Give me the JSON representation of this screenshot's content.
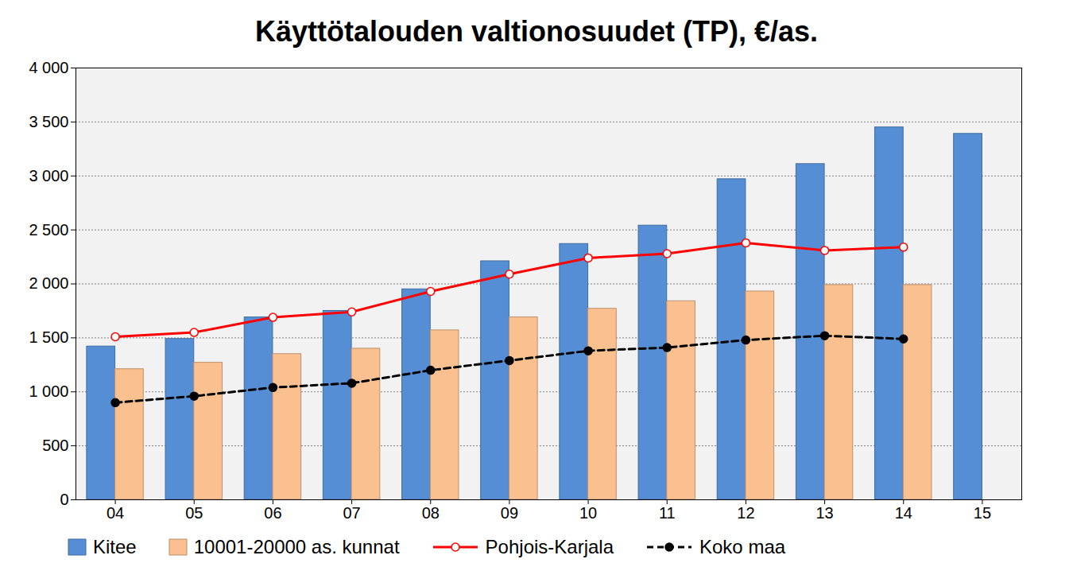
{
  "chart_data": {
    "type": "bar",
    "title": "Käyttötalouden valtionosuudet (TP), €/as.",
    "categories": [
      "04",
      "05",
      "06",
      "07",
      "08",
      "09",
      "10",
      "11",
      "12",
      "13",
      "14",
      "15"
    ],
    "series": [
      {
        "name": "Kitee",
        "type": "bar",
        "color": "#558ed5",
        "values": [
          1420,
          1490,
          1690,
          1750,
          1950,
          2210,
          2370,
          2540,
          2970,
          3110,
          3450,
          3390
        ]
      },
      {
        "name": "10001-20000 as. kunnat",
        "type": "bar",
        "color": "#fac090",
        "values": [
          1210,
          1270,
          1350,
          1400,
          1570,
          1690,
          1770,
          1840,
          1930,
          1990,
          1990,
          null
        ]
      },
      {
        "name": "Pohjois-Karjala",
        "type": "line",
        "color": "#ff0000",
        "marker": "circle-open",
        "line_style": "solid",
        "values": [
          1510,
          1550,
          1690,
          1740,
          1930,
          2090,
          2240,
          2280,
          2380,
          2310,
          2340,
          null
        ]
      },
      {
        "name": "Koko maa",
        "type": "line",
        "color": "#000000",
        "marker": "circle",
        "line_style": "dashed",
        "values": [
          900,
          960,
          1040,
          1080,
          1200,
          1290,
          1380,
          1410,
          1480,
          1520,
          1490,
          null
        ]
      }
    ],
    "ylim": [
      0,
      4000
    ],
    "yticks": [
      0,
      500,
      {
        "value": 1000,
        "label": "1 000"
      },
      {
        "value": 1500,
        "label": "1 500"
      },
      {
        "value": 2000,
        "label": "2 000"
      },
      {
        "value": 2500,
        "label": "2 500"
      },
      {
        "value": 3000,
        "label": "3 000"
      },
      {
        "value": 3500,
        "label": "3 500"
      },
      {
        "value": 4000,
        "label": "4 000"
      }
    ],
    "grid": true,
    "legend": "bottom"
  }
}
